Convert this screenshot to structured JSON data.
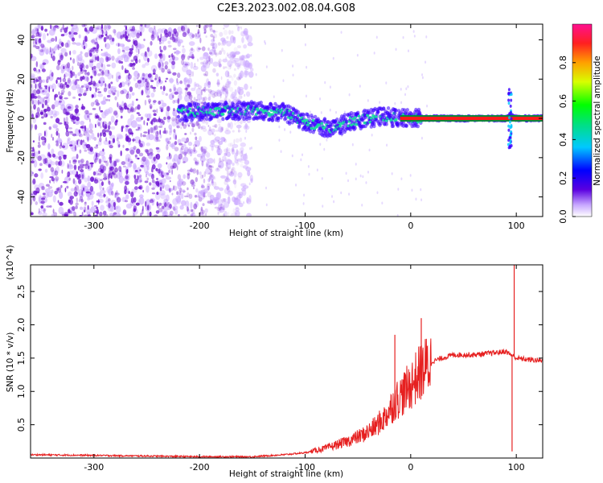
{
  "title": "C2E3.2023.002.08.04.G08",
  "colors": {
    "snr_line": "#e62020",
    "spectrogram_speckle": "#6a0fd0",
    "trace_core": "#ff1a1a",
    "trace_band": "#18e0a0"
  },
  "chart_data": [
    {
      "type": "heatmap",
      "xlabel": "Height of straight line (km)",
      "ylabel": "Frequency (Hz)",
      "xlim": [
        -360,
        125
      ],
      "ylim": [
        -50,
        48
      ],
      "xticks": [
        -300,
        -200,
        -100,
        0,
        100
      ],
      "xtick_labels": [
        "-300",
        "-200",
        "-100",
        "0",
        "100"
      ],
      "yticks": [
        -40,
        -20,
        0,
        20,
        40
      ],
      "ytick_labels": [
        "-40",
        "-20",
        "0",
        "20",
        "40"
      ],
      "colorbar": {
        "label": "Normalized spectral amplitude",
        "range": [
          0.0,
          1.0
        ],
        "ticks": [
          0.0,
          0.2,
          0.4,
          0.6,
          0.8
        ],
        "tick_labels": [
          "0.0",
          "0.2",
          "0.4",
          "0.6",
          "0.8"
        ]
      },
      "noise_region_x": [
        -360,
        -160
      ],
      "trace": {
        "x": [
          -220,
          -180,
          -150,
          -120,
          -100,
          -85,
          -75,
          -60,
          -40,
          -25,
          -10,
          0,
          20,
          60,
          90,
          95,
          100,
          125
        ],
        "y": [
          3,
          4,
          4,
          3,
          -2,
          -4,
          -6,
          -2,
          0,
          1,
          0,
          0,
          0,
          0,
          0,
          1,
          0,
          0
        ]
      }
    },
    {
      "type": "line",
      "xlabel": "Height of straight line (km)",
      "ylabel": "SNR (10 * v/v)",
      "ylabel_scale": "(x10^4)",
      "xlim": [
        -360,
        125
      ],
      "ylim": [
        0,
        2.9
      ],
      "xticks": [
        -300,
        -200,
        -100,
        0,
        100
      ],
      "xtick_labels": [
        "-300",
        "-200",
        "-100",
        "0",
        "100"
      ],
      "yticks": [
        0.5,
        1.0,
        1.5,
        2.0,
        2.5
      ],
      "ytick_labels": [
        "0.5",
        "1.0",
        "1.5",
        "2.0",
        "2.5"
      ],
      "series": [
        {
          "x": [
            -360,
            -300,
            -250,
            -200,
            -150,
            -120,
            -100,
            -80,
            -60,
            -45,
            -35,
            -25,
            -15,
            -5,
            0,
            10,
            20,
            30,
            40,
            60,
            80,
            90,
            95,
            100,
            110,
            125
          ],
          "y": [
            0.05,
            0.04,
            0.03,
            0.02,
            0.02,
            0.05,
            0.08,
            0.15,
            0.25,
            0.35,
            0.45,
            0.6,
            0.85,
            1.0,
            1.1,
            1.3,
            1.45,
            1.5,
            1.55,
            1.55,
            1.58,
            1.6,
            1.55,
            1.5,
            1.48,
            1.46
          ]
        }
      ],
      "spikes": [
        {
          "x": -15,
          "y": 1.85
        },
        {
          "x": 10,
          "y": 2.1
        },
        {
          "x": 98,
          "y": 2.95
        },
        {
          "x": 96,
          "y": 0.1
        }
      ]
    }
  ]
}
